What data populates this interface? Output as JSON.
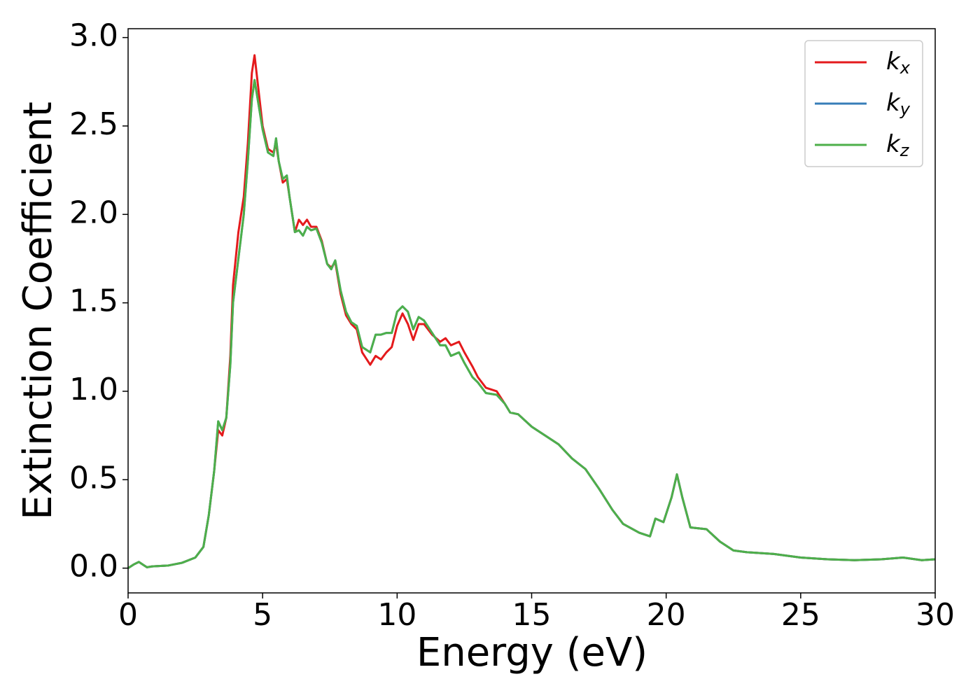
{
  "chart_data": {
    "type": "line",
    "xlabel": "Energy (eV)",
    "ylabel": "Extinction Coefficient",
    "x": [
      0,
      0.2,
      0.4,
      0.55,
      0.7,
      0.9,
      1.5,
      2.0,
      2.5,
      2.8,
      3.0,
      3.2,
      3.35,
      3.5,
      3.65,
      3.8,
      3.9,
      4.1,
      4.3,
      4.45,
      4.6,
      4.7,
      4.85,
      5.0,
      5.2,
      5.4,
      5.5,
      5.6,
      5.75,
      5.9,
      6.0,
      6.2,
      6.35,
      6.5,
      6.65,
      6.8,
      7.0,
      7.2,
      7.4,
      7.55,
      7.7,
      7.9,
      8.1,
      8.3,
      8.5,
      8.7,
      9.0,
      9.2,
      9.4,
      9.6,
      9.8,
      10.0,
      10.2,
      10.4,
      10.6,
      10.8,
      11.0,
      11.3,
      11.6,
      11.8,
      12.0,
      12.3,
      12.5,
      12.8,
      13.0,
      13.3,
      13.7,
      14.0,
      14.2,
      14.5,
      15.0,
      15.5,
      16.0,
      16.5,
      17.0,
      17.5,
      18.0,
      18.4,
      19.0,
      19.4,
      19.6,
      19.9,
      20.2,
      20.4,
      20.6,
      20.9,
      21.5,
      22.0,
      22.5,
      23.0,
      24,
      25,
      26,
      27,
      28,
      28.8,
      29.5,
      30
    ],
    "series": [
      {
        "name": "kx",
        "color": "#e41a1c",
        "values": [
          0,
          0.02,
          0.035,
          0.02,
          0.005,
          0.01,
          0.015,
          0.03,
          0.06,
          0.12,
          0.3,
          0.55,
          0.78,
          0.75,
          0.85,
          1.2,
          1.6,
          1.9,
          2.1,
          2.4,
          2.8,
          2.9,
          2.7,
          2.5,
          2.37,
          2.35,
          2.4,
          2.3,
          2.18,
          2.2,
          2.1,
          1.9,
          1.97,
          1.94,
          1.97,
          1.93,
          1.93,
          1.85,
          1.72,
          1.7,
          1.73,
          1.55,
          1.43,
          1.38,
          1.35,
          1.22,
          1.15,
          1.2,
          1.18,
          1.22,
          1.25,
          1.37,
          1.44,
          1.38,
          1.29,
          1.38,
          1.38,
          1.32,
          1.28,
          1.3,
          1.26,
          1.28,
          1.22,
          1.14,
          1.08,
          1.02,
          1.0,
          0.93,
          0.88,
          0.87,
          0.8,
          0.75,
          0.7,
          0.62,
          0.56,
          0.45,
          0.33,
          0.25,
          0.2,
          0.18,
          0.28,
          0.26,
          0.4,
          0.53,
          0.4,
          0.23,
          0.22,
          0.15,
          0.1,
          0.09,
          0.08,
          0.06,
          0.05,
          0.045,
          0.05,
          0.06,
          0.045,
          0.05
        ]
      },
      {
        "name": "ky",
        "color": "#377eb8",
        "values": [
          0,
          0.02,
          0.035,
          0.02,
          0.005,
          0.01,
          0.015,
          0.03,
          0.06,
          0.12,
          0.3,
          0.55,
          0.83,
          0.78,
          0.85,
          1.15,
          1.5,
          1.75,
          2.0,
          2.3,
          2.65,
          2.76,
          2.62,
          2.48,
          2.35,
          2.33,
          2.43,
          2.3,
          2.2,
          2.22,
          2.1,
          1.9,
          1.91,
          1.88,
          1.93,
          1.91,
          1.92,
          1.84,
          1.72,
          1.69,
          1.74,
          1.57,
          1.45,
          1.39,
          1.37,
          1.25,
          1.22,
          1.32,
          1.32,
          1.33,
          1.33,
          1.45,
          1.48,
          1.45,
          1.35,
          1.42,
          1.4,
          1.33,
          1.26,
          1.26,
          1.2,
          1.22,
          1.16,
          1.08,
          1.05,
          0.99,
          0.98,
          0.93,
          0.88,
          0.87,
          0.8,
          0.75,
          0.7,
          0.62,
          0.56,
          0.45,
          0.33,
          0.25,
          0.2,
          0.18,
          0.28,
          0.26,
          0.4,
          0.53,
          0.4,
          0.23,
          0.22,
          0.15,
          0.1,
          0.09,
          0.08,
          0.06,
          0.05,
          0.045,
          0.05,
          0.06,
          0.045,
          0.05
        ]
      },
      {
        "name": "kz",
        "color": "#4daf4a",
        "values": [
          0,
          0.02,
          0.035,
          0.02,
          0.005,
          0.01,
          0.015,
          0.03,
          0.06,
          0.12,
          0.3,
          0.55,
          0.83,
          0.78,
          0.85,
          1.15,
          1.5,
          1.75,
          2.0,
          2.3,
          2.65,
          2.76,
          2.62,
          2.48,
          2.35,
          2.33,
          2.43,
          2.3,
          2.2,
          2.22,
          2.1,
          1.9,
          1.91,
          1.88,
          1.93,
          1.91,
          1.92,
          1.84,
          1.72,
          1.69,
          1.74,
          1.57,
          1.45,
          1.39,
          1.37,
          1.25,
          1.22,
          1.32,
          1.32,
          1.33,
          1.33,
          1.45,
          1.48,
          1.45,
          1.35,
          1.42,
          1.4,
          1.33,
          1.26,
          1.26,
          1.2,
          1.22,
          1.16,
          1.08,
          1.05,
          0.99,
          0.98,
          0.93,
          0.88,
          0.87,
          0.8,
          0.75,
          0.7,
          0.62,
          0.56,
          0.45,
          0.33,
          0.25,
          0.2,
          0.18,
          0.28,
          0.26,
          0.4,
          0.53,
          0.4,
          0.23,
          0.22,
          0.15,
          0.1,
          0.09,
          0.08,
          0.06,
          0.05,
          0.045,
          0.05,
          0.06,
          0.045,
          0.05
        ]
      }
    ],
    "xlim": [
      0,
      30
    ],
    "xticks": [
      0,
      5,
      10,
      15,
      20,
      25,
      30
    ],
    "ylim": [
      -0.14,
      3.05
    ],
    "yticks": [
      {
        "value": 0,
        "label": "0.0"
      },
      {
        "value": 0.5,
        "label": "0.5"
      },
      {
        "value": 1,
        "label": "1.0"
      },
      {
        "value": 1.5,
        "label": "1.5"
      },
      {
        "value": 2,
        "label": "2.0"
      },
      {
        "value": 2.5,
        "label": "2.5"
      },
      {
        "value": 3,
        "label": "3.0"
      }
    ],
    "grid": false,
    "legend": "upper right"
  }
}
